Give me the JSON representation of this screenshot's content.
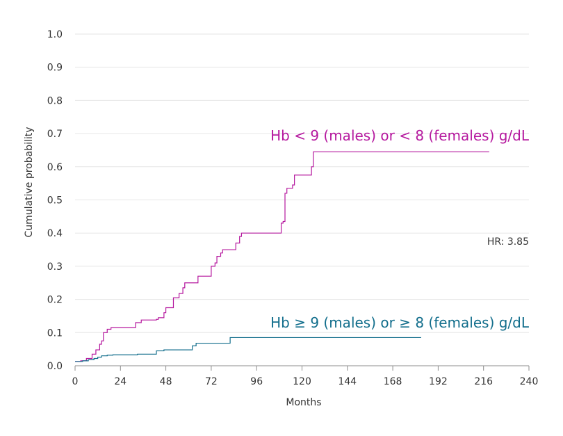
{
  "chart_data": {
    "type": "line",
    "step": true,
    "xlabel": "Months",
    "ylabel": "Cumulative probability",
    "xlim": [
      0,
      240
    ],
    "ylim": [
      0,
      1.0
    ],
    "x_ticks": [
      0,
      24,
      48,
      72,
      96,
      120,
      144,
      168,
      192,
      216,
      240
    ],
    "y_ticks": [
      0.0,
      0.1,
      0.2,
      0.3,
      0.4,
      0.5,
      0.6,
      0.7,
      0.8,
      0.9,
      1.0
    ],
    "y_tick_labels": [
      "0.0",
      "0.1",
      "0.2",
      "0.3",
      "0.4",
      "0.5",
      "0.6",
      "0.7",
      "0.8",
      "0.9",
      "1.0"
    ],
    "grid": true,
    "annotation": "HR: 3.85",
    "series": [
      {
        "name": "Hb < 9 (males) or < 8 (females) g/dL",
        "color": "#b5179e",
        "points": [
          [
            0,
            0.013
          ],
          [
            3,
            0.015
          ],
          [
            6,
            0.022
          ],
          [
            9,
            0.035
          ],
          [
            11,
            0.048
          ],
          [
            13,
            0.065
          ],
          [
            14,
            0.075
          ],
          [
            15,
            0.1
          ],
          [
            17,
            0.11
          ],
          [
            19,
            0.115
          ],
          [
            30,
            0.115
          ],
          [
            32,
            0.13
          ],
          [
            35,
            0.138
          ],
          [
            43,
            0.14
          ],
          [
            44,
            0.145
          ],
          [
            47,
            0.16
          ],
          [
            48,
            0.175
          ],
          [
            51,
            0.175
          ],
          [
            52,
            0.205
          ],
          [
            55,
            0.218
          ],
          [
            57,
            0.235
          ],
          [
            58,
            0.25
          ],
          [
            64,
            0.25
          ],
          [
            65,
            0.27
          ],
          [
            71,
            0.27
          ],
          [
            72,
            0.3
          ],
          [
            74,
            0.31
          ],
          [
            75,
            0.33
          ],
          [
            77,
            0.34
          ],
          [
            78,
            0.35
          ],
          [
            84,
            0.35
          ],
          [
            85,
            0.37
          ],
          [
            87,
            0.39
          ],
          [
            88,
            0.4
          ],
          [
            108,
            0.4
          ],
          [
            109,
            0.43
          ],
          [
            110,
            0.435
          ],
          [
            111,
            0.52
          ],
          [
            112,
            0.535
          ],
          [
            115,
            0.545
          ],
          [
            116,
            0.575
          ],
          [
            124,
            0.575
          ],
          [
            125,
            0.6
          ],
          [
            126,
            0.645
          ],
          [
            219,
            0.645
          ]
        ]
      },
      {
        "name": "Hb ≥ 9 (males) or ≥ 8 (females) g/dL",
        "color": "#126e8c",
        "points": [
          [
            0,
            0.013
          ],
          [
            4,
            0.015
          ],
          [
            7,
            0.018
          ],
          [
            10,
            0.022
          ],
          [
            12,
            0.026
          ],
          [
            14,
            0.03
          ],
          [
            17,
            0.032
          ],
          [
            20,
            0.033
          ],
          [
            31,
            0.033
          ],
          [
            33,
            0.035
          ],
          [
            41,
            0.035
          ],
          [
            43,
            0.045
          ],
          [
            47,
            0.048
          ],
          [
            60,
            0.048
          ],
          [
            62,
            0.06
          ],
          [
            64,
            0.068
          ],
          [
            81,
            0.068
          ],
          [
            82,
            0.085
          ],
          [
            183,
            0.085
          ]
        ]
      }
    ]
  }
}
